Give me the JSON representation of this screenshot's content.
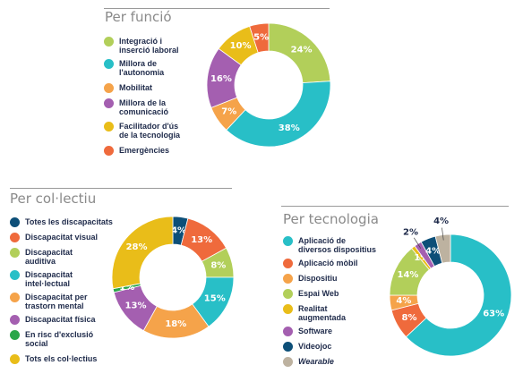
{
  "chart_data": [
    {
      "type": "pie",
      "title": "Per funció",
      "categories": [
        "Integració i inserció laboral",
        "Millora de l'autonomia",
        "Mobilitat",
        "Millora de la comunicació",
        "Facilitador d'ús de la tecnologia",
        "Emergències"
      ],
      "values": [
        24,
        38,
        7,
        16,
        10,
        5
      ],
      "labels": [
        "24%",
        "38%",
        "7%",
        "16%",
        "10%",
        "5%"
      ],
      "colors": [
        "#b2cf5a",
        "#28bfc7",
        "#f5a34a",
        "#a45fb0",
        "#e9bd19",
        "#ef6a3c"
      ],
      "legend": "left"
    },
    {
      "type": "pie",
      "title": "Per col·lectiu",
      "categories": [
        "Totes les discapacitats",
        "Discapacitat visual",
        "Discapacitat auditiva",
        "Discapacitat intel·lectual",
        "Discapacitat per trastorn mental",
        "Discapacitat física",
        "En risc d'exclusió social",
        "Tots els col·lectius"
      ],
      "values": [
        4,
        13,
        8,
        15,
        18,
        13,
        1,
        28
      ],
      "labels": [
        "4%",
        "13%",
        "8%",
        "15%",
        "18%",
        "13%",
        "1%",
        "28%"
      ],
      "colors": [
        "#0d4f78",
        "#ef6a3c",
        "#b2cf5a",
        "#28bfc7",
        "#f5a34a",
        "#a45fb0",
        "#2aa64a",
        "#e9bd19"
      ],
      "legend": "left"
    },
    {
      "type": "pie",
      "title": "Per tecnologia",
      "categories": [
        "Aplicació de diversos dispositius",
        "Aplicació mòbil",
        "Dispositiu",
        "Espai Web",
        "Realitat augmentada",
        "Software",
        "Videojoc",
        "Wearable"
      ],
      "values": [
        63,
        8,
        4,
        14,
        1,
        2,
        4,
        4
      ],
      "labels": [
        "63%",
        "8%",
        "4%",
        "14%",
        "1%",
        "2%",
        "4%",
        "4%"
      ],
      "colors": [
        "#28bfc7",
        "#ef6a3c",
        "#f5a34a",
        "#b2cf5a",
        "#e9bd19",
        "#a45fb0",
        "#0d4f78",
        "#bdb2a0"
      ],
      "legend": "left"
    }
  ]
}
